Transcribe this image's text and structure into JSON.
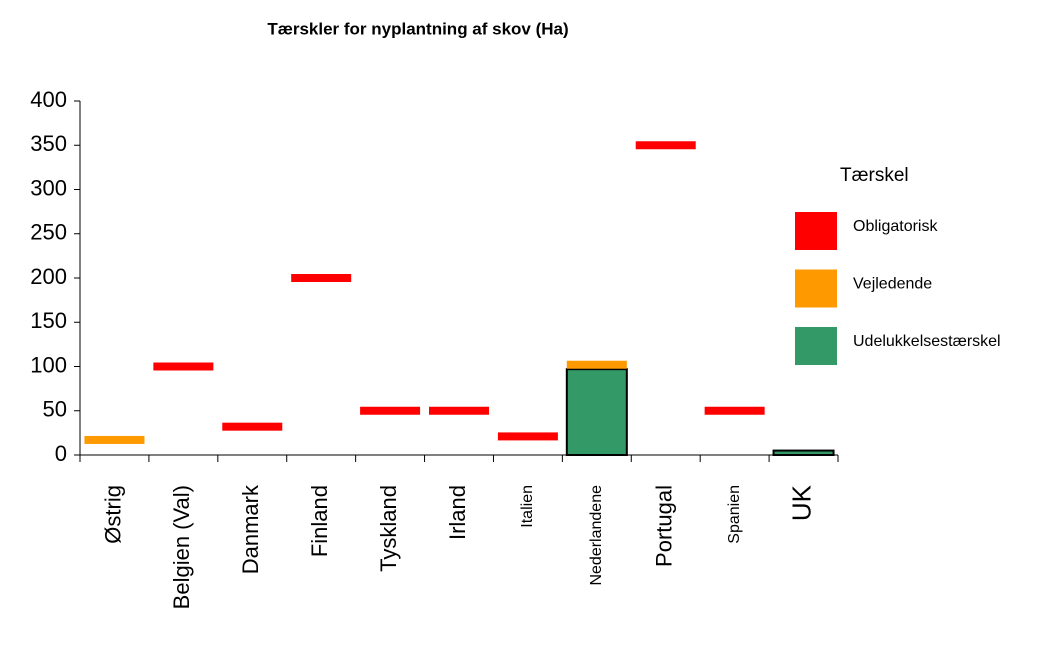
{
  "chart_data": {
    "type": "bar",
    "title": "Tærskler for nyplantning af skov (Ha)",
    "categories": [
      "Østrig",
      "Belgien (Val)",
      "Danmark",
      "Finland",
      "Tyskland",
      "Irland",
      "Italien",
      "Nederlandene",
      "Portugal",
      "Spanien",
      "UK"
    ],
    "legend_title": "Tærskel",
    "series": [
      {
        "name": "Obligatorisk",
        "color": "#ff0000",
        "style": "marker",
        "values": [
          null,
          100,
          32,
          200,
          50,
          50,
          21,
          null,
          350,
          50,
          null
        ]
      },
      {
        "name": "Vejledende",
        "color": "#ff9900",
        "style": "marker",
        "values": [
          17,
          null,
          null,
          null,
          null,
          null,
          null,
          102,
          null,
          null,
          null
        ]
      },
      {
        "name": "Udelukkelsestærskel",
        "color": "#339966",
        "style": "bar",
        "values": [
          null,
          null,
          null,
          null,
          null,
          null,
          null,
          97,
          null,
          null,
          5
        ]
      }
    ],
    "ylim": [
      0,
      400
    ],
    "yticks": [
      0,
      50,
      100,
      150,
      200,
      250,
      300,
      350,
      400
    ],
    "grid": false,
    "legend": "right"
  }
}
